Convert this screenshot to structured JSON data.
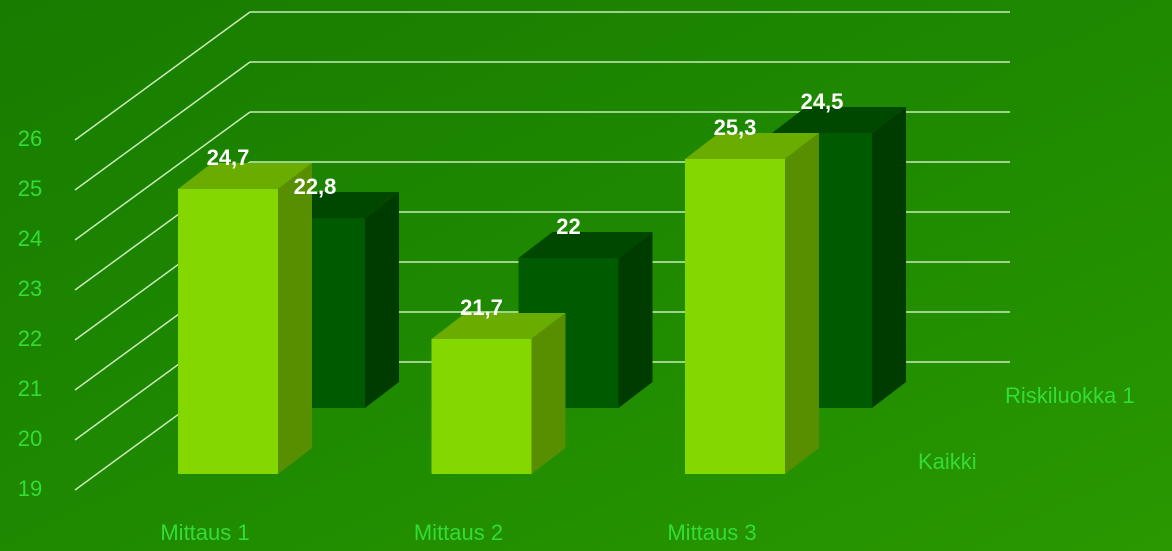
{
  "chart_data": {
    "type": "bar3d",
    "categories": [
      "Mittaus 1",
      "Mittaus 2",
      "Mittaus 3"
    ],
    "series": [
      {
        "name": "Kaikki",
        "color": "#84d800",
        "values": [
          24.7,
          21.7,
          25.3
        ],
        "value_labels": [
          "24,7",
          "21,7",
          "25,3"
        ]
      },
      {
        "name": "Riskiluokka 1",
        "color": "#005a00",
        "values": [
          22.8,
          22,
          24.5
        ],
        "value_labels": [
          "22,8",
          "22",
          "24,5"
        ]
      }
    ],
    "ylim": [
      19,
      26
    ],
    "yticks": [
      19,
      20,
      21,
      22,
      23,
      24,
      25,
      26
    ],
    "grid": true
  }
}
